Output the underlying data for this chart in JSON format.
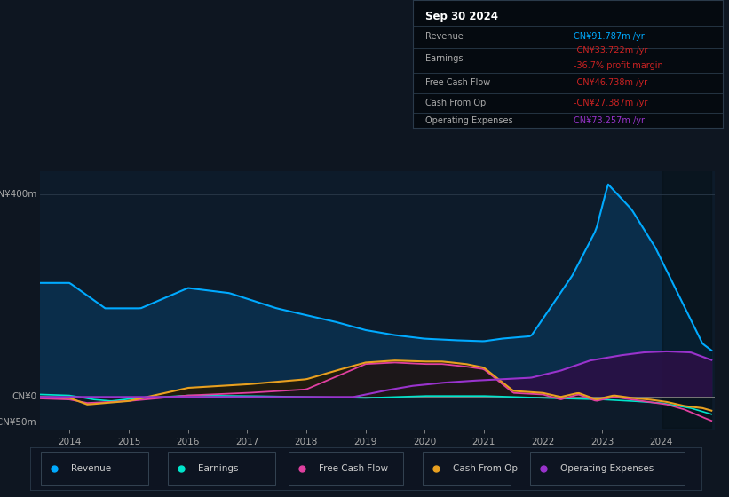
{
  "bg_color": "#0e1621",
  "chart_bg": "#0d1b2a",
  "panel_bg": "#0a0f18",
  "info_box_bg": "#050a10",
  "legend_bg": "#0d1421",
  "revenue_color": "#00aaff",
  "earnings_color": "#00e5cc",
  "free_cash_flow_color": "#e040a0",
  "cash_from_op_color": "#e8a020",
  "operating_expenses_color": "#9933cc",
  "revenue_fill": "#0a2d4a",
  "opex_fill": "#2a1045",
  "cop_fill": "#1a1208",
  "legend_items": [
    {
      "label": "Revenue",
      "color": "#00aaff"
    },
    {
      "label": "Earnings",
      "color": "#00e5cc"
    },
    {
      "label": "Free Cash Flow",
      "color": "#e040a0"
    },
    {
      "label": "Cash From Op",
      "color": "#e8a020"
    },
    {
      "label": "Operating Expenses",
      "color": "#9933cc"
    }
  ]
}
